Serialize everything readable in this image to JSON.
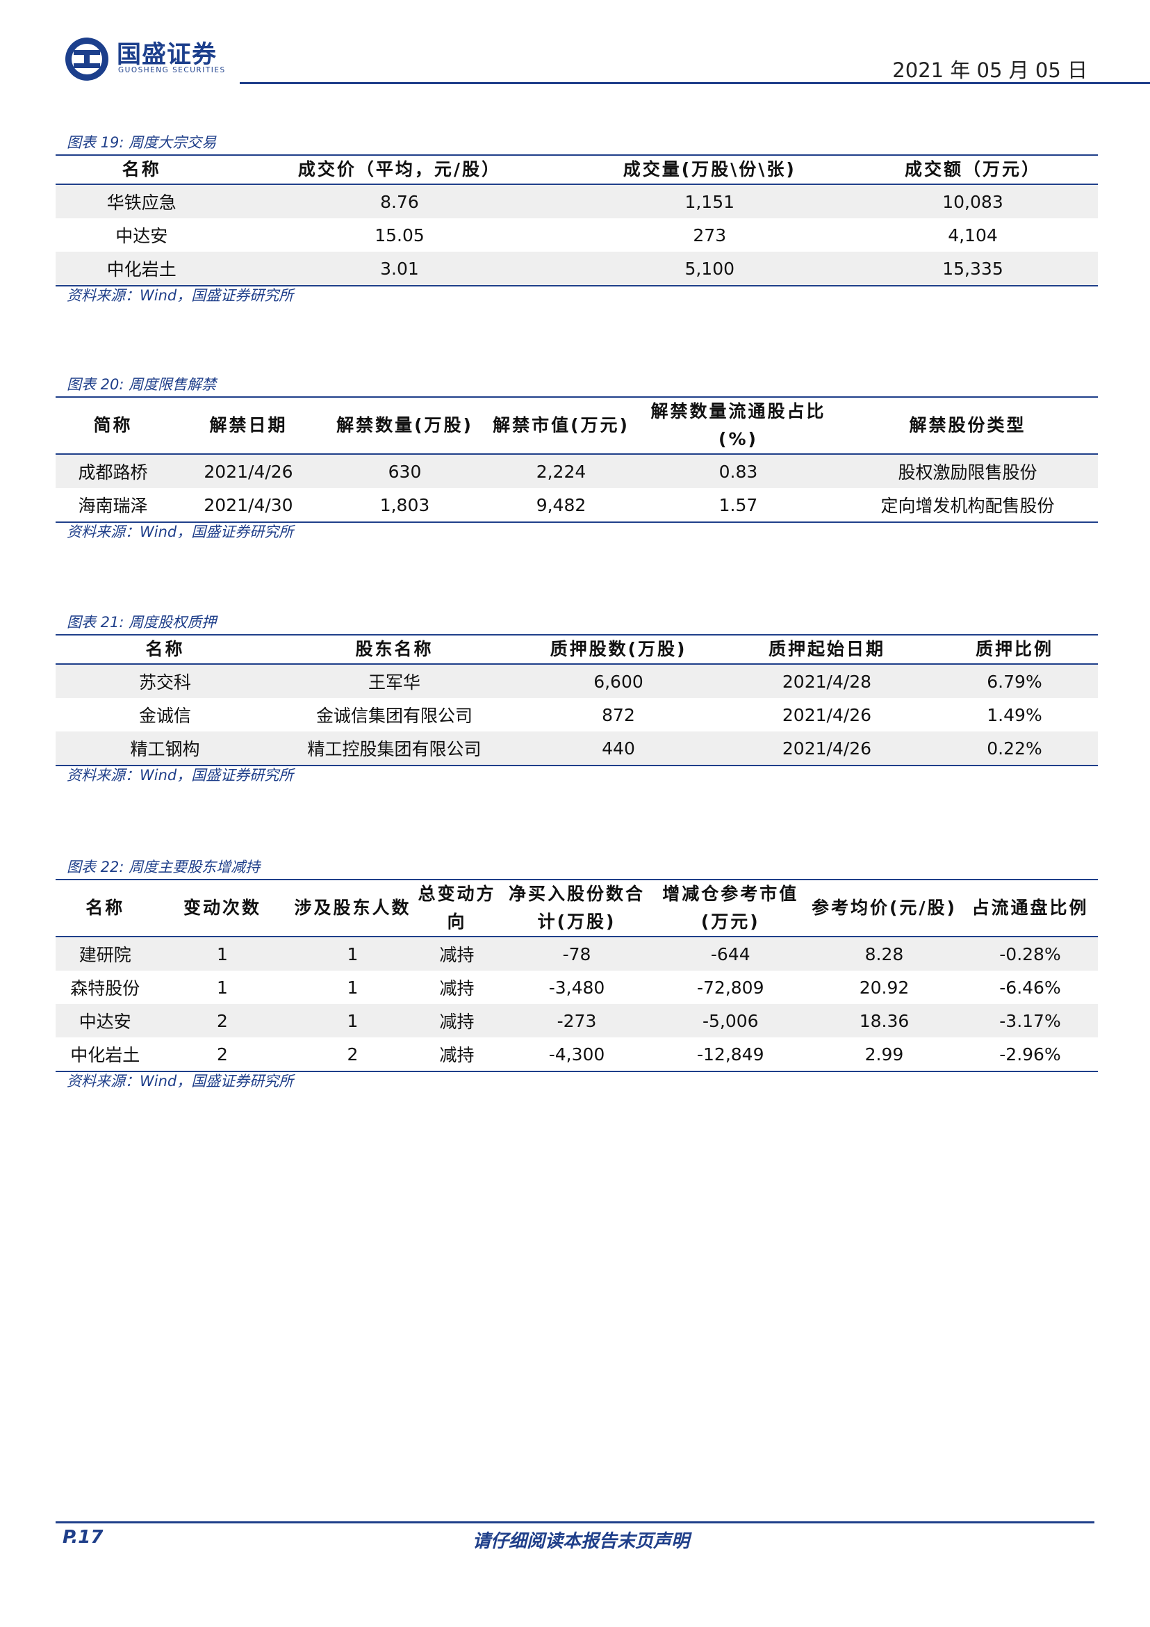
{
  "header": {
    "brand_cn": "国盛证券",
    "brand_en": "GUOSHENG SECURITIES",
    "date": "2021 年 05 月 05 日"
  },
  "table19": {
    "caption": "图表 19:  周度大宗交易",
    "headers": [
      "名称",
      "成交价（平均，元/股）",
      "成交量(万股\\份\\张)",
      "成交额（万元）"
    ],
    "rows": [
      [
        "华铁应急",
        "8.76",
        "1,151",
        "10,083"
      ],
      [
        "中达安",
        "15.05",
        "273",
        "4,104"
      ],
      [
        "中化岩土",
        "3.01",
        "5,100",
        "15,335"
      ]
    ],
    "source": "资料来源：Wind，国盛证券研究所"
  },
  "table20": {
    "caption": "图表 20:  周度限售解禁",
    "headers": [
      "简称",
      "解禁日期",
      "解禁数量(万股)",
      "解禁市值(万元)",
      "解禁数量流通股占比(%)",
      "解禁股份类型"
    ],
    "rows": [
      [
        "成都路桥",
        "2021/4/26",
        "630",
        "2,224",
        "0.83",
        "股权激励限售股份"
      ],
      [
        "海南瑞泽",
        "2021/4/30",
        "1,803",
        "9,482",
        "1.57",
        "定向增发机构配售股份"
      ]
    ],
    "source": "资料来源：Wind，国盛证券研究所"
  },
  "table21": {
    "caption": "图表 21:  周度股权质押",
    "headers": [
      "名称",
      "股东名称",
      "质押股数(万股)",
      "质押起始日期",
      "质押比例"
    ],
    "rows": [
      [
        "苏交科",
        "王军华",
        "6,600",
        "2021/4/28",
        "6.79%"
      ],
      [
        "金诚信",
        "金诚信集团有限公司",
        "872",
        "2021/4/26",
        "1.49%"
      ],
      [
        "精工钢构",
        "精工控股集团有限公司",
        "440",
        "2021/4/26",
        "0.22%"
      ]
    ],
    "source": "资料来源：Wind，国盛证券研究所"
  },
  "table22": {
    "caption": "图表 22:  周度主要股东增减持",
    "headers": [
      "名称",
      "变动次数",
      "涉及股东人数",
      "总变动方向",
      "净买入股份数合计(万股)",
      "增减仓参考市值(万元)",
      "参考均价(元/股)",
      "占流通盘比例"
    ],
    "rows": [
      [
        "建研院",
        "1",
        "1",
        "减持",
        "-78",
        "-644",
        "8.28",
        "-0.28%"
      ],
      [
        "森特股份",
        "1",
        "1",
        "减持",
        "-3,480",
        "-72,809",
        "20.92",
        "-6.46%"
      ],
      [
        "中达安",
        "2",
        "1",
        "减持",
        "-273",
        "-5,006",
        "18.36",
        "-3.17%"
      ],
      [
        "中化岩土",
        "2",
        "2",
        "减持",
        "-4,300",
        "-12,849",
        "2.99",
        "-2.96%"
      ]
    ],
    "source": "资料来源：Wind，国盛证券研究所"
  },
  "footer": {
    "page": "P.17",
    "note": "请仔细阅读本报告末页声明"
  }
}
